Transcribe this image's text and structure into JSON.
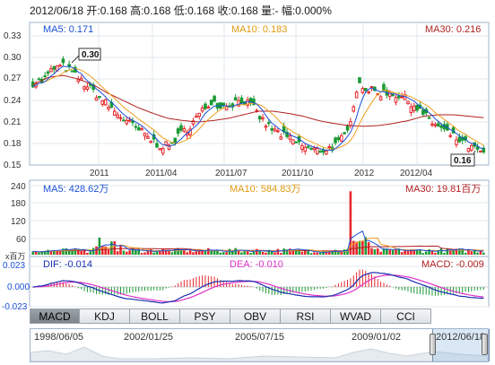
{
  "header": {
    "text": "2012/06/18 开:0.168 高:0.168 低:0.168 收:0.168 量:- 幅:0.000%"
  },
  "price_panel": {
    "ma5_label": "MA5: 0.171",
    "ma10_label": "MA10: 0.183",
    "ma30_label": "MA30: 0.216",
    "y_ticks": [
      "0.33",
      "0.30",
      "0.27",
      "0.24",
      "0.21",
      "0.18",
      "0.15"
    ],
    "x_ticks": [
      "2011",
      "2011/04",
      "2011/07",
      "2011/10",
      "2012",
      "2012/04"
    ],
    "high_marker": "0.30",
    "low_marker": "0.16"
  },
  "volume_panel": {
    "ma5_label": "MA5: 428.62万",
    "ma10_label": "MA10: 584.83万",
    "ma30_label": "MA30: 19.81百万",
    "y_ticks": [
      "240",
      "180",
      "120",
      "60"
    ],
    "unit_label": "x百万"
  },
  "macd_panel": {
    "dif_label": "DIF: -0.014",
    "dea_label": "DEA: -0.010",
    "macd_label": "MACD: -0.009",
    "y_ticks": [
      "0.023",
      "0.000",
      "-0.023"
    ]
  },
  "tabs": [
    "MACD",
    "KDJ",
    "BOLL",
    "PSY",
    "OBV",
    "RSI",
    "WVAD",
    "CCI"
  ],
  "active_tab": "MACD",
  "navigator": {
    "dates": [
      "1998/06/05",
      "2002/01/25",
      "2005/07/15",
      "2009/01/02",
      "2012/06/18"
    ]
  },
  "colors": {
    "up": "#e8262b",
    "down": "#1b9a35",
    "ma5": "#1a4fd6",
    "ma10": "#f0a020",
    "ma30": "#b02020",
    "dif": "#1a2fb0",
    "dea": "#e030c8"
  },
  "chart_data": {
    "type": "candlestick",
    "x_range": [
      "2010-10",
      "2012-06-18"
    ],
    "y_range": [
      0.15,
      0.33
    ],
    "last_close": 0.168,
    "close_series_approx": [
      0.265,
      0.268,
      0.285,
      0.288,
      0.275,
      0.262,
      0.25,
      0.235,
      0.222,
      0.21,
      0.2,
      0.188,
      0.178,
      0.176,
      0.192,
      0.205,
      0.222,
      0.24,
      0.232,
      0.236,
      0.242,
      0.23,
      0.21,
      0.198,
      0.19,
      0.182,
      0.175,
      0.17,
      0.172,
      0.178,
      0.195,
      0.265,
      0.255,
      0.25,
      0.252,
      0.246,
      0.238,
      0.225,
      0.21,
      0.2,
      0.19,
      0.182,
      0.172,
      0.168
    ],
    "ma30_approx": [
      0.262,
      0.272,
      0.275,
      0.27,
      0.262,
      0.25,
      0.24,
      0.23,
      0.222,
      0.215,
      0.212,
      0.21,
      0.212,
      0.215,
      0.22,
      0.225,
      0.225,
      0.222,
      0.218,
      0.212,
      0.208,
      0.205,
      0.204,
      0.205,
      0.208,
      0.212,
      0.218,
      0.22,
      0.22,
      0.218,
      0.216
    ]
  }
}
